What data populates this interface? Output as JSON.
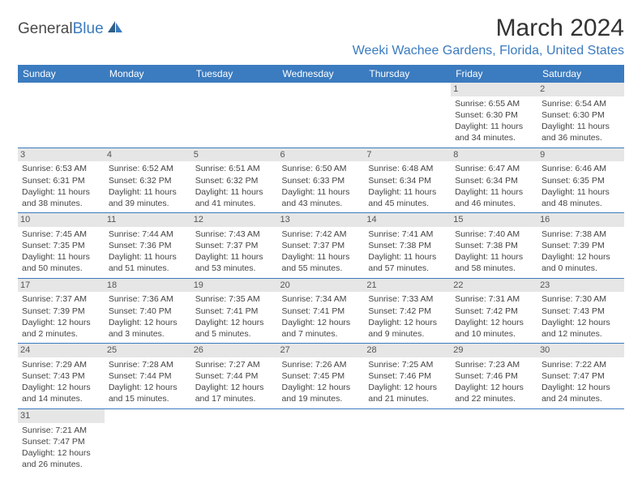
{
  "brand": {
    "name_part1": "General",
    "name_part2": "Blue"
  },
  "title": "March 2024",
  "location": "Weeki Wachee Gardens, Florida, United States",
  "colors": {
    "header_bg": "#3b7bbf",
    "header_text": "#ffffff",
    "daynum_bg": "#e6e6e6",
    "border": "#3b7bbf",
    "brand_blue": "#3b7bbf"
  },
  "days_of_week": [
    "Sunday",
    "Monday",
    "Tuesday",
    "Wednesday",
    "Thursday",
    "Friday",
    "Saturday"
  ],
  "weeks": [
    [
      null,
      null,
      null,
      null,
      null,
      {
        "n": "1",
        "sunrise": "Sunrise: 6:55 AM",
        "sunset": "Sunset: 6:30 PM",
        "daylight": "Daylight: 11 hours and 34 minutes."
      },
      {
        "n": "2",
        "sunrise": "Sunrise: 6:54 AM",
        "sunset": "Sunset: 6:30 PM",
        "daylight": "Daylight: 11 hours and 36 minutes."
      }
    ],
    [
      {
        "n": "3",
        "sunrise": "Sunrise: 6:53 AM",
        "sunset": "Sunset: 6:31 PM",
        "daylight": "Daylight: 11 hours and 38 minutes."
      },
      {
        "n": "4",
        "sunrise": "Sunrise: 6:52 AM",
        "sunset": "Sunset: 6:32 PM",
        "daylight": "Daylight: 11 hours and 39 minutes."
      },
      {
        "n": "5",
        "sunrise": "Sunrise: 6:51 AM",
        "sunset": "Sunset: 6:32 PM",
        "daylight": "Daylight: 11 hours and 41 minutes."
      },
      {
        "n": "6",
        "sunrise": "Sunrise: 6:50 AM",
        "sunset": "Sunset: 6:33 PM",
        "daylight": "Daylight: 11 hours and 43 minutes."
      },
      {
        "n": "7",
        "sunrise": "Sunrise: 6:48 AM",
        "sunset": "Sunset: 6:34 PM",
        "daylight": "Daylight: 11 hours and 45 minutes."
      },
      {
        "n": "8",
        "sunrise": "Sunrise: 6:47 AM",
        "sunset": "Sunset: 6:34 PM",
        "daylight": "Daylight: 11 hours and 46 minutes."
      },
      {
        "n": "9",
        "sunrise": "Sunrise: 6:46 AM",
        "sunset": "Sunset: 6:35 PM",
        "daylight": "Daylight: 11 hours and 48 minutes."
      }
    ],
    [
      {
        "n": "10",
        "sunrise": "Sunrise: 7:45 AM",
        "sunset": "Sunset: 7:35 PM",
        "daylight": "Daylight: 11 hours and 50 minutes."
      },
      {
        "n": "11",
        "sunrise": "Sunrise: 7:44 AM",
        "sunset": "Sunset: 7:36 PM",
        "daylight": "Daylight: 11 hours and 51 minutes."
      },
      {
        "n": "12",
        "sunrise": "Sunrise: 7:43 AM",
        "sunset": "Sunset: 7:37 PM",
        "daylight": "Daylight: 11 hours and 53 minutes."
      },
      {
        "n": "13",
        "sunrise": "Sunrise: 7:42 AM",
        "sunset": "Sunset: 7:37 PM",
        "daylight": "Daylight: 11 hours and 55 minutes."
      },
      {
        "n": "14",
        "sunrise": "Sunrise: 7:41 AM",
        "sunset": "Sunset: 7:38 PM",
        "daylight": "Daylight: 11 hours and 57 minutes."
      },
      {
        "n": "15",
        "sunrise": "Sunrise: 7:40 AM",
        "sunset": "Sunset: 7:38 PM",
        "daylight": "Daylight: 11 hours and 58 minutes."
      },
      {
        "n": "16",
        "sunrise": "Sunrise: 7:38 AM",
        "sunset": "Sunset: 7:39 PM",
        "daylight": "Daylight: 12 hours and 0 minutes."
      }
    ],
    [
      {
        "n": "17",
        "sunrise": "Sunrise: 7:37 AM",
        "sunset": "Sunset: 7:39 PM",
        "daylight": "Daylight: 12 hours and 2 minutes."
      },
      {
        "n": "18",
        "sunrise": "Sunrise: 7:36 AM",
        "sunset": "Sunset: 7:40 PM",
        "daylight": "Daylight: 12 hours and 3 minutes."
      },
      {
        "n": "19",
        "sunrise": "Sunrise: 7:35 AM",
        "sunset": "Sunset: 7:41 PM",
        "daylight": "Daylight: 12 hours and 5 minutes."
      },
      {
        "n": "20",
        "sunrise": "Sunrise: 7:34 AM",
        "sunset": "Sunset: 7:41 PM",
        "daylight": "Daylight: 12 hours and 7 minutes."
      },
      {
        "n": "21",
        "sunrise": "Sunrise: 7:33 AM",
        "sunset": "Sunset: 7:42 PM",
        "daylight": "Daylight: 12 hours and 9 minutes."
      },
      {
        "n": "22",
        "sunrise": "Sunrise: 7:31 AM",
        "sunset": "Sunset: 7:42 PM",
        "daylight": "Daylight: 12 hours and 10 minutes."
      },
      {
        "n": "23",
        "sunrise": "Sunrise: 7:30 AM",
        "sunset": "Sunset: 7:43 PM",
        "daylight": "Daylight: 12 hours and 12 minutes."
      }
    ],
    [
      {
        "n": "24",
        "sunrise": "Sunrise: 7:29 AM",
        "sunset": "Sunset: 7:43 PM",
        "daylight": "Daylight: 12 hours and 14 minutes."
      },
      {
        "n": "25",
        "sunrise": "Sunrise: 7:28 AM",
        "sunset": "Sunset: 7:44 PM",
        "daylight": "Daylight: 12 hours and 15 minutes."
      },
      {
        "n": "26",
        "sunrise": "Sunrise: 7:27 AM",
        "sunset": "Sunset: 7:44 PM",
        "daylight": "Daylight: 12 hours and 17 minutes."
      },
      {
        "n": "27",
        "sunrise": "Sunrise: 7:26 AM",
        "sunset": "Sunset: 7:45 PM",
        "daylight": "Daylight: 12 hours and 19 minutes."
      },
      {
        "n": "28",
        "sunrise": "Sunrise: 7:25 AM",
        "sunset": "Sunset: 7:46 PM",
        "daylight": "Daylight: 12 hours and 21 minutes."
      },
      {
        "n": "29",
        "sunrise": "Sunrise: 7:23 AM",
        "sunset": "Sunset: 7:46 PM",
        "daylight": "Daylight: 12 hours and 22 minutes."
      },
      {
        "n": "30",
        "sunrise": "Sunrise: 7:22 AM",
        "sunset": "Sunset: 7:47 PM",
        "daylight": "Daylight: 12 hours and 24 minutes."
      }
    ],
    [
      {
        "n": "31",
        "sunrise": "Sunrise: 7:21 AM",
        "sunset": "Sunset: 7:47 PM",
        "daylight": "Daylight: 12 hours and 26 minutes."
      },
      null,
      null,
      null,
      null,
      null,
      null
    ]
  ]
}
